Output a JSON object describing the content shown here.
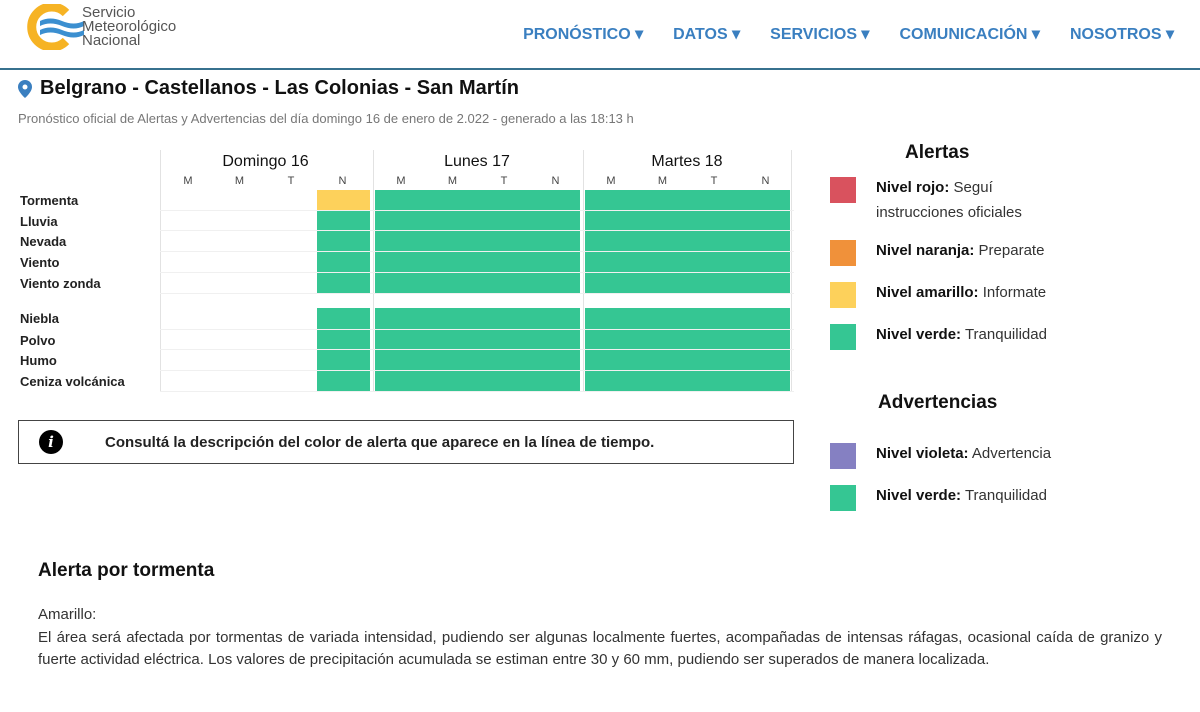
{
  "header": {
    "logo_lines": [
      "Servicio",
      "Meteorológico",
      "Nacional"
    ],
    "nav": [
      "PRONÓSTICO",
      "DATOS",
      "SERVICIOS",
      "COMUNICACIÓN",
      "NOSOTROS"
    ]
  },
  "location": "Belgrano - Castellanos - Las Colonias - San Martín",
  "subtitle": "Pronóstico oficial de Alertas y Advertencias del día domingo 16 de enero de 2.022 - generado a las 18:13 h",
  "timeline": {
    "days": [
      "Domingo 16",
      "Lunes 17",
      "Martes 18"
    ],
    "periods": [
      "M",
      "M",
      "T",
      "N"
    ],
    "groups": [
      [
        {
          "label": "Tormenta",
          "levels": [
            null,
            null,
            null,
            "amarillo",
            "verde",
            "verde",
            "verde",
            "verde",
            "verde",
            "verde",
            "verde",
            "verde"
          ]
        },
        {
          "label": "Lluvia",
          "levels": [
            null,
            null,
            null,
            "verde",
            "verde",
            "verde",
            "verde",
            "verde",
            "verde",
            "verde",
            "verde",
            "verde"
          ]
        },
        {
          "label": "Nevada",
          "levels": [
            null,
            null,
            null,
            "verde",
            "verde",
            "verde",
            "verde",
            "verde",
            "verde",
            "verde",
            "verde",
            "verde"
          ]
        },
        {
          "label": "Viento",
          "levels": [
            null,
            null,
            null,
            "verde",
            "verde",
            "verde",
            "verde",
            "verde",
            "verde",
            "verde",
            "verde",
            "verde"
          ]
        },
        {
          "label": "Viento zonda",
          "levels": [
            null,
            null,
            null,
            "verde",
            "verde",
            "verde",
            "verde",
            "verde",
            "verde",
            "verde",
            "verde",
            "verde"
          ]
        }
      ],
      [
        {
          "label": "Niebla",
          "levels": [
            null,
            null,
            null,
            "verde",
            "verde",
            "verde",
            "verde",
            "verde",
            "verde",
            "verde",
            "verde",
            "verde"
          ]
        },
        {
          "label": "Polvo",
          "levels": [
            null,
            null,
            null,
            "verde",
            "verde",
            "verde",
            "verde",
            "verde",
            "verde",
            "verde",
            "verde",
            "verde"
          ]
        },
        {
          "label": "Humo",
          "levels": [
            null,
            null,
            null,
            "verde",
            "verde",
            "verde",
            "verde",
            "verde",
            "verde",
            "verde",
            "verde",
            "verde"
          ]
        },
        {
          "label": "Ceniza volcánica",
          "levels": [
            null,
            null,
            null,
            "verde",
            "verde",
            "verde",
            "verde",
            "verde",
            "verde",
            "verde",
            "verde",
            "verde"
          ]
        }
      ]
    ]
  },
  "colors": {
    "rojo": "#d9525e",
    "naranja": "#f0913a",
    "amarillo": "#fdd15b",
    "verde": "#35c693",
    "violeta": "#8580c2",
    "accent": "#3a7fc0"
  },
  "info_text": "Consultá la descripción del color de alerta que aparece en la línea de tiempo.",
  "legend": {
    "alertas_title": "Alertas",
    "alertas": [
      {
        "color": "rojo",
        "name": "Nivel rojo:",
        "desc": "Seguí instrucciones oficiales"
      },
      {
        "color": "naranja",
        "name": "Nivel naranja:",
        "desc": "Preparate"
      },
      {
        "color": "amarillo",
        "name": "Nivel amarillo:",
        "desc": "Informate"
      },
      {
        "color": "verde",
        "name": "Nivel verde:",
        "desc": "Tranquilidad"
      }
    ],
    "advertencias_title": "Advertencias",
    "advertencias": [
      {
        "color": "violeta",
        "name": "Nivel violeta:",
        "desc": "Advertencia"
      },
      {
        "color": "verde",
        "name": "Nivel verde:",
        "desc": "Tranquilidad"
      }
    ]
  },
  "alert_section": {
    "title": "Alerta por tormenta",
    "level": "Amarillo:",
    "body": "El área será afectada por tormentas de variada intensidad, pudiendo ser algunas localmente fuertes, acompañadas de intensas ráfagas, ocasional caída de granizo y fuerte actividad eléctrica. Los valores de precipitación acumulada se estiman entre 30 y 60 mm, pudiendo ser superados de manera localizada."
  }
}
